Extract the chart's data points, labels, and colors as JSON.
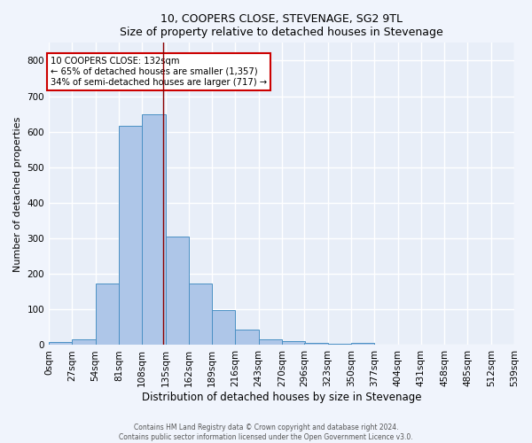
{
  "title": "10, COOPERS CLOSE, STEVENAGE, SG2 9TL",
  "subtitle": "Size of property relative to detached houses in Stevenage",
  "xlabel": "Distribution of detached houses by size in Stevenage",
  "ylabel": "Number of detached properties",
  "bar_values": [
    8,
    15,
    172,
    617,
    648,
    305,
    172,
    99,
    43,
    16,
    10,
    5,
    4,
    6,
    0,
    0,
    0,
    0,
    0,
    0
  ],
  "bin_edges": [
    0,
    27,
    54,
    81,
    108,
    135,
    162,
    189,
    216,
    243,
    270,
    296,
    323,
    350,
    377,
    404,
    431,
    458,
    485,
    512,
    539
  ],
  "tick_labels": [
    "0sqm",
    "27sqm",
    "54sqm",
    "81sqm",
    "108sqm",
    "135sqm",
    "162sqm",
    "189sqm",
    "216sqm",
    "243sqm",
    "270sqm",
    "296sqm",
    "323sqm",
    "350sqm",
    "377sqm",
    "404sqm",
    "431sqm",
    "458sqm",
    "485sqm",
    "512sqm",
    "539sqm"
  ],
  "property_size": 132,
  "bar_facecolor": "#aec6e8",
  "bar_edgecolor": "#4a90c4",
  "vline_color": "#8b0000",
  "bg_color": "#e8eef8",
  "fig_color": "#f0f4fc",
  "grid_color": "#ffffff",
  "annotation_text": "10 COOPERS CLOSE: 132sqm\n← 65% of detached houses are smaller (1,357)\n34% of semi-detached houses are larger (717) →",
  "annotation_box_edgecolor": "#cc0000",
  "footnote1": "Contains HM Land Registry data © Crown copyright and database right 2024.",
  "footnote2": "Contains public sector information licensed under the Open Government Licence v3.0.",
  "ylim": [
    0,
    850
  ],
  "yticks": [
    0,
    100,
    200,
    300,
    400,
    500,
    600,
    700,
    800
  ]
}
